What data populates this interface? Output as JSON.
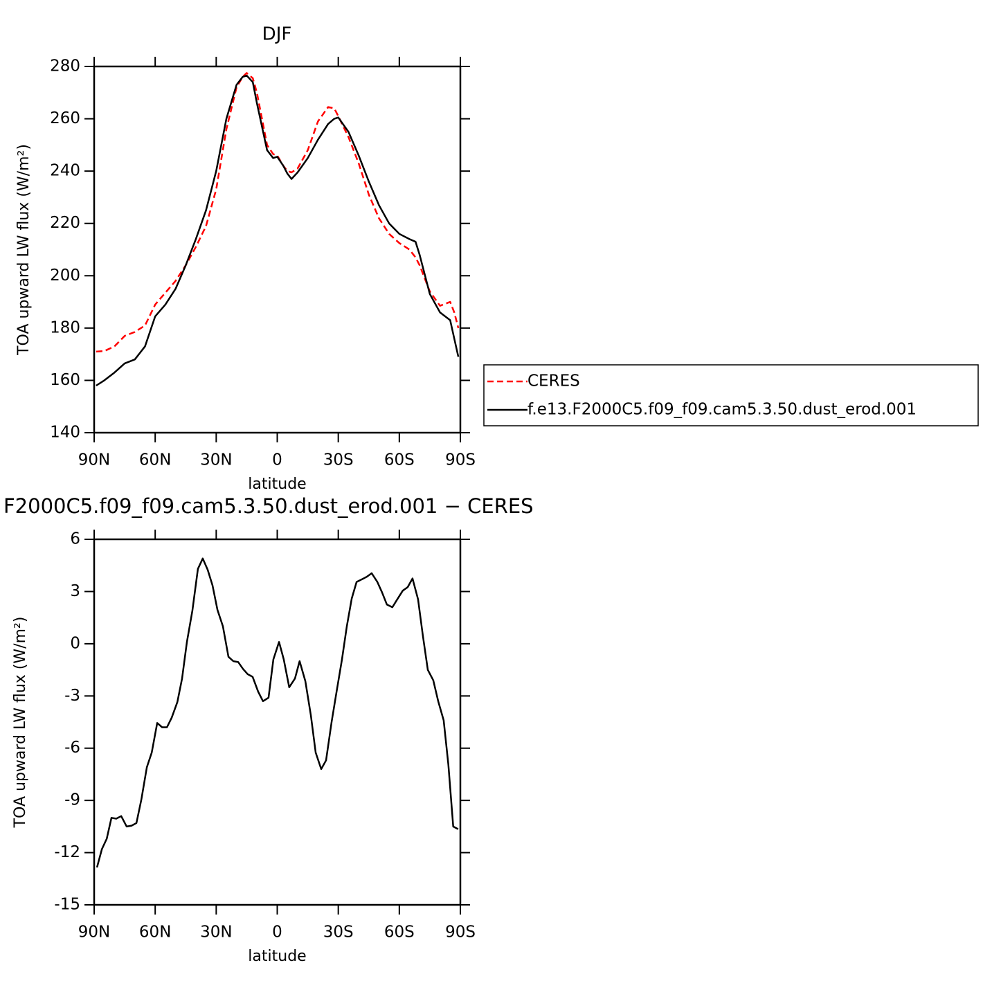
{
  "chart_data": [
    {
      "type": "line",
      "title": "DJF",
      "xlabel": "latitude",
      "ylabel": "TOA upward LW flux (W/m²)",
      "x": [
        89,
        85,
        80,
        75,
        70,
        65,
        60,
        55,
        50,
        45,
        40,
        35,
        30,
        25,
        20,
        17,
        15,
        12,
        10,
        5,
        2,
        0,
        -3,
        -5,
        -7,
        -10,
        -15,
        -20,
        -25,
        -28,
        -30,
        -35,
        -40,
        -45,
        -50,
        -55,
        -60,
        -65,
        -68,
        -70,
        -75,
        -80,
        -85,
        -87,
        -89
      ],
      "series": [
        {
          "name": "CERES",
          "color": "#ff0000",
          "line_style": "dashed",
          "values": [
            171,
            171.2,
            173,
            177,
            178.5,
            181,
            189,
            193.5,
            198,
            204,
            211,
            219,
            233,
            256,
            272,
            276,
            277.5,
            275.5,
            270,
            250,
            246.5,
            246,
            242,
            240,
            239.5,
            241,
            248,
            259,
            264.5,
            264,
            261,
            253,
            243,
            231,
            222,
            216,
            212.5,
            210,
            207,
            204,
            194,
            188.5,
            190,
            186,
            180
          ]
        },
        {
          "name": "f.e13.F2000C5.f09_f09.cam5.3.50.dust_erod.001",
          "color": "#000000",
          "line_style": "solid",
          "values": [
            158,
            160,
            163,
            166.5,
            168,
            173,
            184.5,
            189,
            195,
            204,
            214,
            225,
            240,
            260,
            273,
            276,
            276.5,
            274,
            266,
            248,
            245,
            245.5,
            242,
            239,
            237,
            239.5,
            245,
            252,
            258,
            260,
            260.5,
            255,
            246,
            236,
            227,
            220,
            216,
            214,
            213,
            208,
            193,
            186,
            183,
            176,
            169
          ]
        }
      ],
      "xlim": [
        90,
        -90
      ],
      "xticks": [
        {
          "value": 90,
          "label": "90N"
        },
        {
          "value": 60,
          "label": "60N"
        },
        {
          "value": 30,
          "label": "30N"
        },
        0,
        {
          "value": -30,
          "label": "30S"
        },
        {
          "value": -60,
          "label": "60S"
        },
        {
          "value": -90,
          "label": "90S"
        }
      ],
      "ylim": [
        140,
        280
      ],
      "yticks": [
        140,
        160,
        180,
        200,
        220,
        240,
        260,
        280
      ],
      "legend": "right"
    },
    {
      "type": "line",
      "title": "F2000C5.f09_f09.cam5.3.50.dust_erod.001 − CERES",
      "xlabel": "latitude",
      "ylabel": "TOA upward LW flux (W/m²)",
      "x": [
        88.6,
        86.2,
        83.8,
        81.5,
        79.1,
        76.7,
        74.0,
        71.6,
        69.2,
        66.8,
        64.1,
        61.7,
        59.0,
        56.6,
        54.2,
        51.9,
        49.1,
        46.8,
        44.4,
        41.7,
        39.0,
        36.6,
        34.2,
        31.8,
        29.4,
        26.7,
        24.0,
        21.6,
        19.2,
        16.8,
        14.5,
        12.1,
        9.4,
        7.0,
        4.3,
        1.9,
        -0.9,
        -3.2,
        -5.9,
        -8.7,
        -11.0,
        -13.8,
        -16.5,
        -18.9,
        -21.6,
        -24.0,
        -26.7,
        -29.1,
        -31.8,
        -34.2,
        -36.6,
        -39.0,
        -41.6,
        -44.0,
        -46.4,
        -49.2,
        -51.5,
        -53.9,
        -56.6,
        -59.0,
        -61.7,
        -64.1,
        -66.5,
        -69.2,
        -71.6,
        -74.0,
        -76.7,
        -79.1,
        -81.8,
        -84.1,
        -86.5,
        -88.9
      ],
      "values": [
        -12.85,
        -11.8,
        -11.2,
        -10.0,
        -10.05,
        -9.9,
        -10.5,
        -10.45,
        -10.3,
        -8.95,
        -7.1,
        -6.25,
        -4.55,
        -4.8,
        -4.8,
        -4.25,
        -3.35,
        -2.0,
        0.1,
        1.9,
        4.3,
        4.9,
        4.25,
        3.35,
        1.95,
        1.0,
        -0.75,
        -1.0,
        -1.05,
        -1.45,
        -1.75,
        -1.9,
        -2.75,
        -3.3,
        -3.1,
        -0.9,
        0.1,
        -0.9,
        -2.5,
        -2.0,
        -1.0,
        -2.15,
        -4.1,
        -6.25,
        -7.2,
        -6.7,
        -4.5,
        -2.8,
        -0.9,
        1.0,
        2.6,
        3.55,
        3.7,
        3.85,
        4.05,
        3.55,
        2.95,
        2.25,
        2.1,
        2.55,
        3.05,
        3.25,
        3.75,
        2.55,
        0.45,
        -1.5,
        -2.1,
        -3.3,
        -4.4,
        -6.95,
        -10.5,
        -10.65
      ],
      "color": "#000000",
      "xlim": [
        90,
        -90
      ],
      "xticks": [
        {
          "value": 90,
          "label": "90N"
        },
        {
          "value": 60,
          "label": "60N"
        },
        {
          "value": 30,
          "label": "30N"
        },
        0,
        {
          "value": -30,
          "label": "30S"
        },
        {
          "value": -60,
          "label": "60S"
        },
        {
          "value": -90,
          "label": "90S"
        }
      ],
      "ylim": [
        -15,
        6
      ],
      "yticks": [
        -15,
        -12,
        -9,
        -6,
        -3,
        0,
        3,
        6
      ]
    }
  ]
}
